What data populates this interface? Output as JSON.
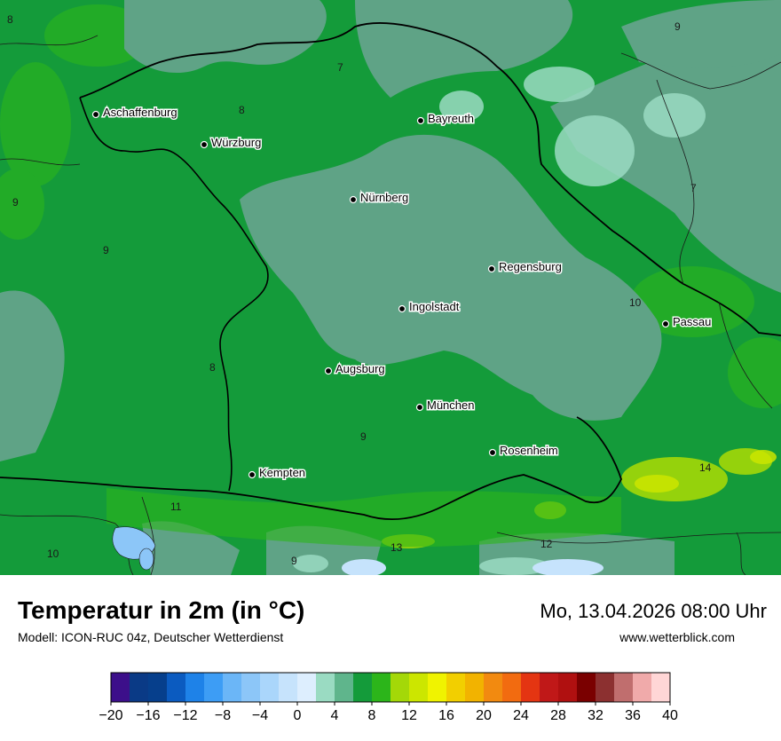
{
  "title": "Temperatur in 2m (in °C)",
  "subtitle": "Modell: ICON-RUC 04z, Deutscher Wetterdienst",
  "datetime": "Mo, 13.04.2026 08:00 Uhr",
  "website": "www.wetterblick.com",
  "cities": [
    {
      "name": "Aschaffenburg"
    },
    {
      "name": "Würzburg"
    },
    {
      "name": "Bayreuth"
    },
    {
      "name": "Nürnberg"
    },
    {
      "name": "Regensburg"
    },
    {
      "name": "Ingolstadt"
    },
    {
      "name": "Passau"
    },
    {
      "name": "Augsburg"
    },
    {
      "name": "München"
    },
    {
      "name": "Rosenheim"
    },
    {
      "name": "Kempten"
    }
  ],
  "isotherm_labels": [
    "8",
    "7",
    "9",
    "8",
    "9",
    "9",
    "7",
    "10",
    "8",
    "9",
    "14",
    "11",
    "13",
    "12",
    "10",
    "9"
  ],
  "legend": {
    "ticks": [
      "−20",
      "−16",
      "−12",
      "−8",
      "−4",
      "0",
      "4",
      "8",
      "12",
      "16",
      "20",
      "24",
      "28",
      "32",
      "36",
      "40"
    ],
    "colors": [
      "#3c0f8a",
      "#0a3a86",
      "#063f8c",
      "#0b5bc0",
      "#1e82e8",
      "#3d9df5",
      "#6bb6f7",
      "#8cc6f8",
      "#aad6fb",
      "#c6e3fc",
      "#ddeefe",
      "#9adbc2",
      "#5fb58c",
      "#149b3a",
      "#2cb51a",
      "#a4d808",
      "#cce600",
      "#f0f300",
      "#f2cf00",
      "#f2b300",
      "#f28a10",
      "#f26b10",
      "#e43512",
      "#c01818",
      "#b01010",
      "#7a0000",
      "#8c3030",
      "#c06e6e",
      "#f0aaaa",
      "#ffd6d6"
    ]
  }
}
